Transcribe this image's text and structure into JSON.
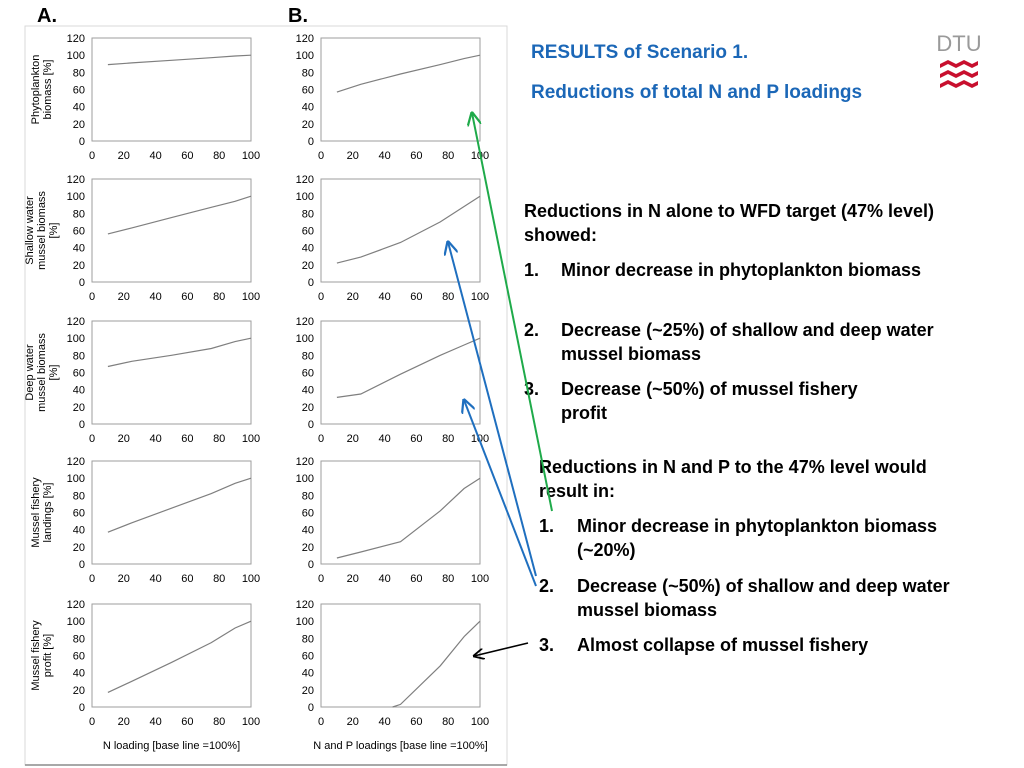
{
  "panels": {
    "a": "A.",
    "b": "B."
  },
  "logo": {
    "text": "DTU",
    "color_text": "#9a9a9a",
    "color_mark": "#c8102e"
  },
  "title": {
    "line1": "RESULTS of Scenario 1.",
    "line2": "Reductions of total N and P loadings",
    "color": "#1b67b7"
  },
  "section1": {
    "heading": "Reductions in N alone to WFD target (47% level) showed:",
    "items": [
      {
        "num": "1.",
        "text": "Minor decrease in phytoplankton biomass"
      },
      {
        "num": "2.",
        "text": "Decrease (~25%) of shallow and deep water mussel biomass"
      },
      {
        "num": "3.",
        "text": "Decrease (~50%) of mussel fishery profit"
      }
    ]
  },
  "section2": {
    "heading": "Reductions in N and P to the 47% level would result in:",
    "items": [
      {
        "num": "1.",
        "text": "Minor decrease in phytoplankton biomass (~20%)"
      },
      {
        "num": "2.",
        "text": "Decrease (~50%) of shallow and deep water mussel biomass"
      },
      {
        "num": "3.",
        "text": "Almost collapse of mussel fishery"
      }
    ]
  },
  "arrow_colors": {
    "green": "#1faa4a",
    "blue": "#1f6fbf",
    "black": "#000000"
  },
  "chart_data": [
    {
      "type": "line",
      "panel": "A",
      "ylabel": "Phytoplankton biomass [%]",
      "xlabel": "",
      "xlim": [
        0,
        100
      ],
      "ylim": [
        0,
        120
      ],
      "xticks": [
        0,
        20,
        40,
        60,
        80,
        100
      ],
      "yticks": [
        0,
        20,
        40,
        60,
        80,
        100,
        120
      ],
      "x": [
        10,
        25,
        50,
        75,
        90,
        100
      ],
      "y": [
        89,
        91,
        94,
        97,
        99,
        100
      ]
    },
    {
      "type": "line",
      "panel": "A",
      "ylabel": "Shallow water mussel biomass [%]",
      "xlabel": "",
      "xlim": [
        0,
        100
      ],
      "ylim": [
        0,
        120
      ],
      "xticks": [
        0,
        20,
        40,
        60,
        80,
        100
      ],
      "yticks": [
        0,
        20,
        40,
        60,
        80,
        100,
        120
      ],
      "x": [
        10,
        25,
        50,
        75,
        90,
        100
      ],
      "y": [
        56,
        63,
        75,
        87,
        94,
        100
      ]
    },
    {
      "type": "line",
      "panel": "A",
      "ylabel": "Deep water mussel biomass [%]",
      "xlabel": "",
      "xlim": [
        0,
        100
      ],
      "ylim": [
        0,
        120
      ],
      "xticks": [
        0,
        20,
        40,
        60,
        80,
        100
      ],
      "yticks": [
        0,
        20,
        40,
        60,
        80,
        100,
        120
      ],
      "x": [
        10,
        25,
        50,
        75,
        90,
        100
      ],
      "y": [
        67,
        73,
        80,
        88,
        96,
        100
      ]
    },
    {
      "type": "line",
      "panel": "A",
      "ylabel": "Mussel fishery landings [%]",
      "xlabel": "",
      "xlim": [
        0,
        100
      ],
      "ylim": [
        0,
        120
      ],
      "xticks": [
        0,
        20,
        40,
        60,
        80,
        100
      ],
      "yticks": [
        0,
        20,
        40,
        60,
        80,
        100,
        120
      ],
      "x": [
        10,
        25,
        50,
        75,
        90,
        100
      ],
      "y": [
        37,
        48,
        65,
        82,
        94,
        100
      ]
    },
    {
      "type": "line",
      "panel": "A",
      "ylabel": "Mussel fishery profit [%]",
      "xlabel": "N loading [base line =100%]",
      "xlim": [
        0,
        100
      ],
      "ylim": [
        0,
        120
      ],
      "xticks": [
        0,
        20,
        40,
        60,
        80,
        100
      ],
      "yticks": [
        0,
        20,
        40,
        60,
        80,
        100,
        120
      ],
      "x": [
        10,
        25,
        50,
        75,
        90,
        100
      ],
      "y": [
        17,
        30,
        52,
        75,
        92,
        100
      ]
    },
    {
      "type": "line",
      "panel": "B",
      "ylabel": "",
      "xlabel": "",
      "xlim": [
        0,
        100
      ],
      "ylim": [
        0,
        120
      ],
      "xticks": [
        0,
        20,
        40,
        60,
        80,
        100
      ],
      "yticks": [
        0,
        20,
        40,
        60,
        80,
        100,
        120
      ],
      "x": [
        10,
        25,
        50,
        75,
        90,
        100
      ],
      "y": [
        57,
        66,
        78,
        89,
        96,
        100
      ]
    },
    {
      "type": "line",
      "panel": "B",
      "ylabel": "",
      "xlabel": "",
      "xlim": [
        0,
        100
      ],
      "ylim": [
        0,
        120
      ],
      "xticks": [
        0,
        20,
        40,
        60,
        80,
        100
      ],
      "yticks": [
        0,
        20,
        40,
        60,
        80,
        100,
        120
      ],
      "x": [
        10,
        25,
        50,
        75,
        90,
        100
      ],
      "y": [
        22,
        29,
        46,
        70,
        88,
        100
      ]
    },
    {
      "type": "line",
      "panel": "B",
      "ylabel": "",
      "xlabel": "",
      "xlim": [
        0,
        100
      ],
      "ylim": [
        0,
        120
      ],
      "xticks": [
        0,
        20,
        40,
        60,
        80,
        100
      ],
      "yticks": [
        0,
        20,
        40,
        60,
        80,
        100,
        120
      ],
      "x": [
        10,
        25,
        50,
        75,
        90,
        100
      ],
      "y": [
        31,
        35,
        58,
        80,
        92,
        100
      ]
    },
    {
      "type": "line",
      "panel": "B",
      "ylabel": "",
      "xlabel": "",
      "xlim": [
        0,
        100
      ],
      "ylim": [
        0,
        120
      ],
      "xticks": [
        0,
        20,
        40,
        60,
        80,
        100
      ],
      "yticks": [
        0,
        20,
        40,
        60,
        80,
        100,
        120
      ],
      "x": [
        10,
        25,
        50,
        75,
        90,
        100
      ],
      "y": [
        7,
        14,
        26,
        62,
        88,
        100
      ]
    },
    {
      "type": "line",
      "panel": "B",
      "ylabel": "",
      "xlabel": "N and P loadings [base line =100%]",
      "xlim": [
        0,
        100
      ],
      "ylim": [
        0,
        120
      ],
      "xticks": [
        0,
        20,
        40,
        60,
        80,
        100
      ],
      "yticks": [
        0,
        20,
        40,
        60,
        80,
        100,
        120
      ],
      "x": [
        45,
        50,
        75,
        90,
        100
      ],
      "y": [
        0,
        3,
        48,
        82,
        100
      ]
    }
  ]
}
